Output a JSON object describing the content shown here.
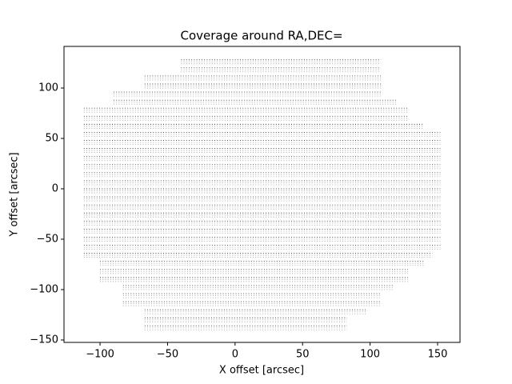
{
  "chart_data": {
    "type": "scatter-rows",
    "title": "Coverage around RA,DEC=",
    "x_label": "X offset [arcsec]",
    "y_label": "Y offset [arcsec]",
    "color": "#000000",
    "xlim": [
      -126.7,
      166.6
    ],
    "ylim": [
      -152.4,
      141.3
    ],
    "xticks": [
      {
        "value": -100,
        "label": "−100"
      },
      {
        "value": -50,
        "label": "−50"
      },
      0,
      50,
      100,
      150
    ],
    "yticks": [
      {
        "value": -150,
        "label": "−150"
      },
      {
        "value": -100,
        "label": "−100"
      },
      {
        "value": -50,
        "label": "−50"
      },
      0,
      50,
      100
    ],
    "rows": [
      {
        "y": 128,
        "x": [
          -40,
          108
        ]
      },
      {
        "y": 120,
        "x": [
          -40,
          108
        ]
      },
      {
        "y": 112,
        "x": [
          -67,
          108
        ]
      },
      {
        "y": 104,
        "x": [
          -67,
          108
        ]
      },
      {
        "y": 96,
        "x": [
          -90,
          108
        ]
      },
      {
        "y": 88,
        "x": [
          -90,
          120
        ]
      },
      {
        "y": 80,
        "x": [
          -112,
          128
        ]
      },
      {
        "y": 72,
        "x": [
          -112,
          128
        ]
      },
      {
        "y": 64,
        "x": [
          -112,
          140
        ]
      },
      {
        "y": 56,
        "x": [
          -112,
          152
        ]
      },
      {
        "y": 48,
        "x": [
          -112,
          152
        ]
      },
      {
        "y": 40,
        "x": [
          -112,
          152
        ]
      },
      {
        "y": 32,
        "x": [
          -112,
          152
        ]
      },
      {
        "y": 24,
        "x": [
          -112,
          152
        ]
      },
      {
        "y": 16,
        "x": [
          -112,
          152
        ]
      },
      {
        "y": 8,
        "x": [
          -112,
          152
        ]
      },
      {
        "y": 0,
        "x": [
          -112,
          152
        ]
      },
      {
        "y": -8,
        "x": [
          -112,
          152
        ]
      },
      {
        "y": -16,
        "x": [
          -112,
          152
        ]
      },
      {
        "y": -24,
        "x": [
          -112,
          152
        ]
      },
      {
        "y": -32,
        "x": [
          -112,
          152
        ]
      },
      {
        "y": -40,
        "x": [
          -112,
          152
        ]
      },
      {
        "y": -48,
        "x": [
          -112,
          152
        ]
      },
      {
        "y": -56,
        "x": [
          -112,
          152
        ]
      },
      {
        "y": -64,
        "x": [
          -112,
          146
        ]
      },
      {
        "y": -72,
        "x": [
          -100,
          140
        ]
      },
      {
        "y": -80,
        "x": [
          -100,
          128
        ]
      },
      {
        "y": -88,
        "x": [
          -100,
          128
        ]
      },
      {
        "y": -96,
        "x": [
          -83,
          118
        ]
      },
      {
        "y": -104,
        "x": [
          -83,
          108
        ]
      },
      {
        "y": -112,
        "x": [
          -83,
          108
        ]
      },
      {
        "y": -120,
        "x": [
          -67,
          98
        ]
      },
      {
        "y": -128,
        "x": [
          -67,
          83
        ]
      },
      {
        "y": -136,
        "x": [
          -67,
          83
        ]
      }
    ]
  }
}
